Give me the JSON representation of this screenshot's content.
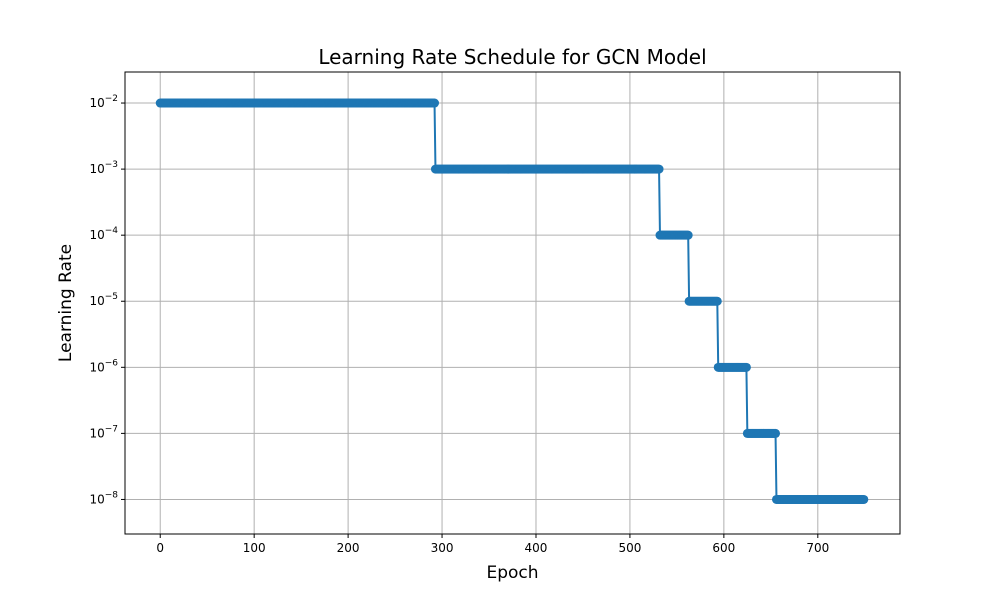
{
  "chart_data": {
    "type": "line",
    "title": "Learning Rate Schedule for GCN Model",
    "xlabel": "Epoch",
    "ylabel": "Learning Rate",
    "xlim": [
      -37.5,
      787.5
    ],
    "ylim": [
      3e-09,
      0.0295
    ],
    "yscale": "log",
    "grid": true,
    "x_ticks": [
      0,
      100,
      200,
      300,
      400,
      500,
      600,
      700
    ],
    "y_ticks": [
      {
        "value": 0.01,
        "base": "10",
        "exp": "−2"
      },
      {
        "value": 0.001,
        "base": "10",
        "exp": "−3"
      },
      {
        "value": 0.0001,
        "base": "10",
        "exp": "−4"
      },
      {
        "value": 1e-05,
        "base": "10",
        "exp": "−5"
      },
      {
        "value": 1e-06,
        "base": "10",
        "exp": "−6"
      },
      {
        "value": 1e-07,
        "base": "10",
        "exp": "−7"
      },
      {
        "value": 1e-08,
        "base": "10",
        "exp": "−8"
      }
    ],
    "marker": "circle",
    "series": [
      {
        "color": "#1f77b4",
        "segments": [
          {
            "x_start": 0,
            "x_end": 292,
            "y": 0.01
          },
          {
            "x_start": 293,
            "x_end": 531,
            "y": 0.001
          },
          {
            "x_start": 532,
            "x_end": 562,
            "y": 0.0001
          },
          {
            "x_start": 563,
            "x_end": 593,
            "y": 1e-05
          },
          {
            "x_start": 594,
            "x_end": 624,
            "y": 1e-06
          },
          {
            "x_start": 625,
            "x_end": 655,
            "y": 1e-07
          },
          {
            "x_start": 656,
            "x_end": 749,
            "y": 1e-08
          }
        ]
      }
    ]
  }
}
